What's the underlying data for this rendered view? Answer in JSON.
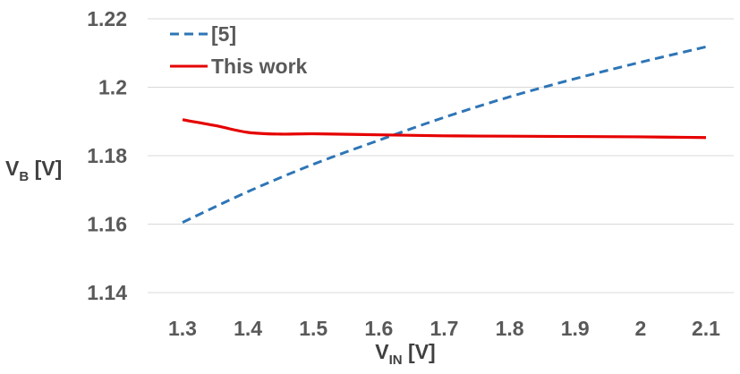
{
  "chart_data": {
    "type": "line",
    "title": "",
    "xlabel": {
      "main": "V",
      "sub": "IN",
      "unit": " [V]"
    },
    "ylabel": {
      "main": "V",
      "sub": "B",
      "unit": " [V]"
    },
    "x_ticks": [
      "1.3",
      "1.4",
      "1.5",
      "1.6",
      "1.7",
      "1.8",
      "1.9",
      "2",
      "2.1"
    ],
    "y_ticks": [
      "1.14",
      "1.16",
      "1.18",
      "1.2",
      "1.22"
    ],
    "xlim": [
      1.3,
      2.1
    ],
    "ylim": [
      1.14,
      1.22
    ],
    "grid": "horizontal",
    "legend_position": "top-left",
    "series": [
      {
        "name": "[5]",
        "color": "#2E75B6",
        "style": "dashed",
        "x": [
          1.3,
          1.4,
          1.5,
          1.6,
          1.7,
          1.8,
          1.9,
          2.0,
          2.1
        ],
        "y": [
          1.1605,
          1.1695,
          1.1775,
          1.1845,
          1.1912,
          1.1972,
          1.2025,
          1.2073,
          1.2118
        ]
      },
      {
        "name": "This work",
        "color": "#E60000",
        "style": "solid",
        "x": [
          1.3,
          1.35,
          1.4,
          1.45,
          1.5,
          1.6,
          1.7,
          1.8,
          1.9,
          2.0,
          2.1
        ],
        "y": [
          1.1905,
          1.1888,
          1.1868,
          1.1863,
          1.1864,
          1.1861,
          1.1858,
          1.1857,
          1.1856,
          1.1855,
          1.1853
        ]
      }
    ]
  }
}
